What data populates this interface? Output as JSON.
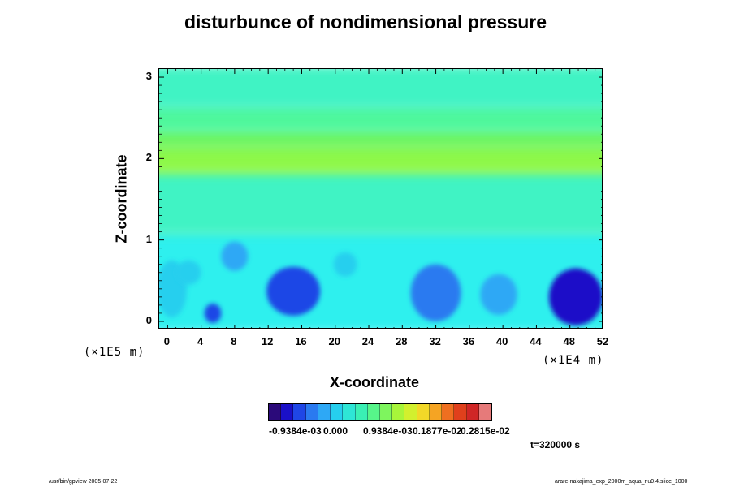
{
  "chart_data": {
    "type": "heatmap",
    "title": "disturbunce of nondimensional pressure",
    "xlabel": "X-coordinate",
    "ylabel": "Z-coordinate",
    "x_scale_label": "(×1E4 m)",
    "y_scale_label": "(×1E5 m)",
    "xlim": [
      -1,
      52
    ],
    "ylim": [
      -0.1,
      3.1
    ],
    "x_ticks": [
      "0",
      "4",
      "8",
      "12",
      "16",
      "20",
      "24",
      "28",
      "32",
      "36",
      "40",
      "44",
      "48",
      "52"
    ],
    "y_ticks": [
      "0",
      "1",
      "2",
      "3"
    ],
    "colorbar_labels": [
      "-0.9384e-03",
      "0.000",
      "0.9384e-03",
      "0.1877e-02",
      "0.2815e-02"
    ],
    "colorbar_colors": [
      "#2b0a7a",
      "#1a10c8",
      "#1f46e6",
      "#2a7af0",
      "#2ea8f5",
      "#26cfee",
      "#2ee6d6",
      "#3af0b4",
      "#57f58a",
      "#7ef55e",
      "#a8f53a",
      "#d2f02e",
      "#f2d828",
      "#f5a423",
      "#ef6f20",
      "#e0401c",
      "#d02626",
      "#e67a7a"
    ],
    "layers": [
      {
        "z_range": [
          -0.1,
          1.1
        ],
        "color": "#2ef0ee"
      },
      {
        "z_range": [
          1.1,
          1.85
        ],
        "color": "#3ff3c4"
      },
      {
        "z_range": [
          1.85,
          2.15
        ],
        "color": "#8ef84a"
      },
      {
        "z_range": [
          2.15,
          2.35
        ],
        "color": "#70f55f"
      },
      {
        "z_range": [
          2.35,
          2.65
        ],
        "color": "#4ff79c"
      },
      {
        "z_range": [
          2.65,
          3.1
        ],
        "color": "#3ff3c4"
      }
    ],
    "blobs": [
      {
        "x": 15,
        "z": 0.37,
        "rx": 3.2,
        "rz": 0.3,
        "color": "#1f46e6"
      },
      {
        "x": 32,
        "z": 0.35,
        "rx": 3.0,
        "rz": 0.35,
        "color": "#2a7af0"
      },
      {
        "x": 48.7,
        "z": 0.3,
        "rx": 3.2,
        "rz": 0.35,
        "color": "#1a10c8"
      },
      {
        "x": 39.5,
        "z": 0.33,
        "rx": 2.2,
        "rz": 0.25,
        "color": "#2ea8f5"
      },
      {
        "x": 8,
        "z": 0.8,
        "rx": 1.6,
        "rz": 0.18,
        "color": "#2ea8f5"
      },
      {
        "x": 21.2,
        "z": 0.7,
        "rx": 1.4,
        "rz": 0.15,
        "color": "#26cfee"
      },
      {
        "x": 5.4,
        "z": 0.1,
        "rx": 1.0,
        "rz": 0.12,
        "color": "#1f46e6"
      },
      {
        "x": 0.5,
        "z": 0.4,
        "rx": 1.8,
        "rz": 0.35,
        "color": "#26cfee"
      },
      {
        "x": 2.5,
        "z": 0.6,
        "rx": 1.5,
        "rz": 0.15,
        "color": "#26cfee"
      }
    ],
    "grid": false
  },
  "annotations": {
    "time_label": "t=320000 s",
    "footer_left": "/usr/bin/gpview 2005-07-22",
    "footer_right": "arare-nakajima_exp_2000m_aqua_nu0.4.slice_1000"
  }
}
